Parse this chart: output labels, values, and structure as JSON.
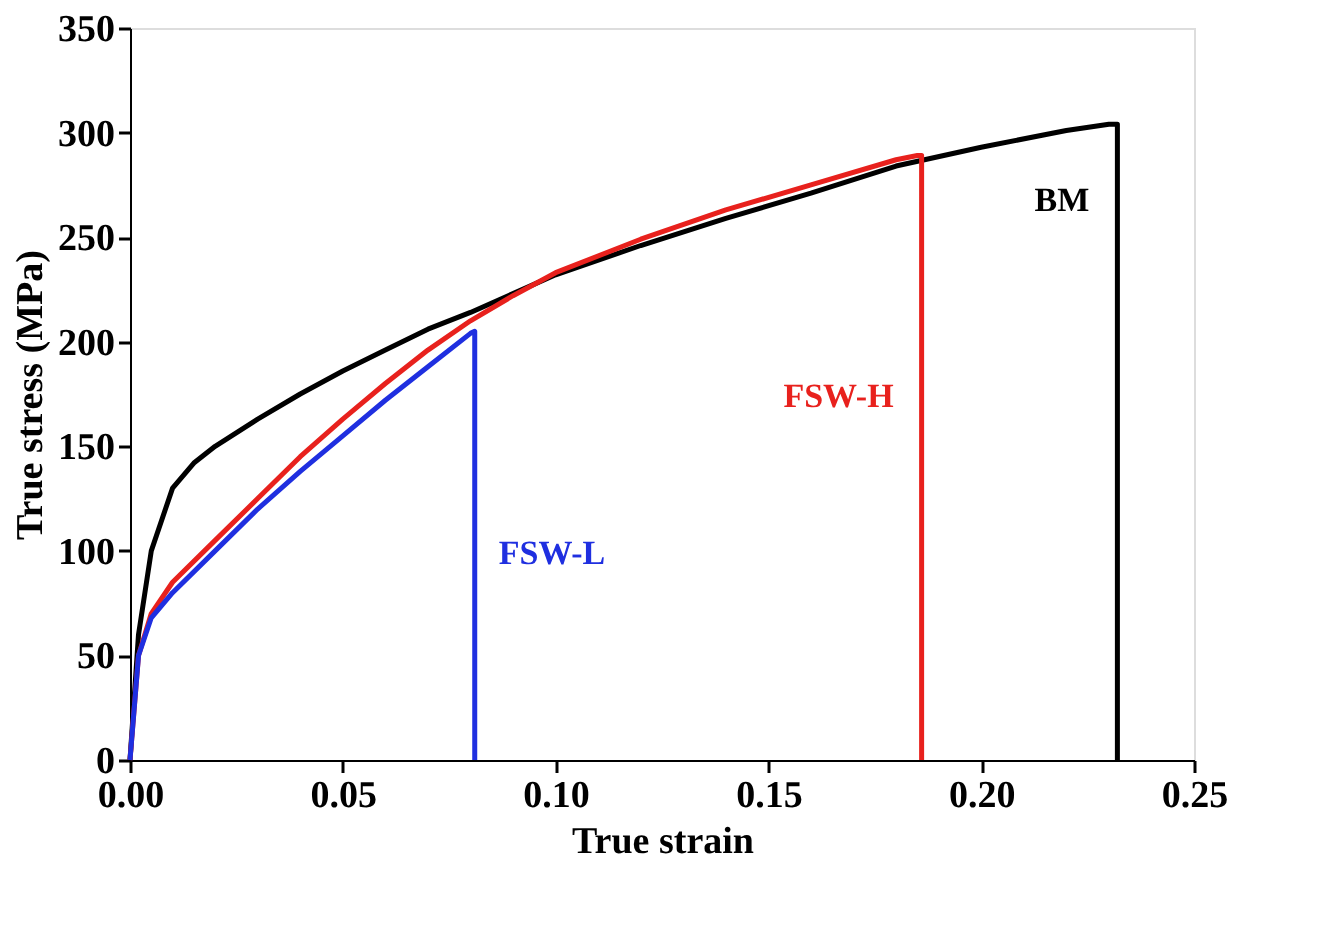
{
  "chart_data": {
    "type": "line",
    "xlabel": "True strain",
    "ylabel": "True stress (MPa)",
    "xlim": [
      0,
      0.25
    ],
    "xticks": [
      {
        "value": 0,
        "label": "0.00"
      },
      0.05,
      {
        "value": 0.1,
        "label": "0.10"
      },
      0.15,
      {
        "value": 0.2,
        "label": "0.20"
      },
      0.25
    ],
    "ylim": [
      0,
      350
    ],
    "yticks": [
      0,
      50,
      100,
      150,
      200,
      250,
      300,
      350
    ],
    "grid": false,
    "legend": false,
    "marker": "none",
    "line_style": "solid",
    "series": [
      {
        "name": "BM",
        "color": "#000000",
        "x": [
          0,
          0.002,
          0.005,
          0.01,
          0.015,
          0.02,
          0.03,
          0.04,
          0.05,
          0.06,
          0.07,
          0.08,
          0.09,
          0.1,
          0.12,
          0.14,
          0.16,
          0.18,
          0.2,
          0.22,
          0.23,
          0.232,
          0.232
        ],
        "values": [
          0,
          60,
          100,
          130,
          142,
          150,
          163,
          175,
          186,
          196,
          206,
          214,
          223,
          232,
          246,
          259,
          271,
          284,
          293,
          301,
          304,
          304,
          0
        ]
      },
      {
        "name": "FSW-H",
        "color": "#e8211d",
        "x": [
          0,
          0.002,
          0.005,
          0.01,
          0.02,
          0.03,
          0.04,
          0.05,
          0.06,
          0.07,
          0.08,
          0.09,
          0.1,
          0.12,
          0.14,
          0.16,
          0.18,
          0.185,
          0.186,
          0.186
        ],
        "values": [
          0,
          50,
          70,
          85,
          105,
          125,
          145,
          163,
          180,
          196,
          210,
          222,
          233,
          249,
          263,
          275,
          287,
          289,
          289,
          0
        ]
      },
      {
        "name": "FSW-L",
        "color": "#1f2fe0",
        "x": [
          0,
          0.002,
          0.005,
          0.01,
          0.02,
          0.03,
          0.04,
          0.05,
          0.06,
          0.07,
          0.08,
          0.081,
          0.081
        ],
        "values": [
          0,
          50,
          68,
          80,
          100,
          120,
          138,
          155,
          172,
          188,
          204,
          205,
          0
        ]
      }
    ]
  }
}
